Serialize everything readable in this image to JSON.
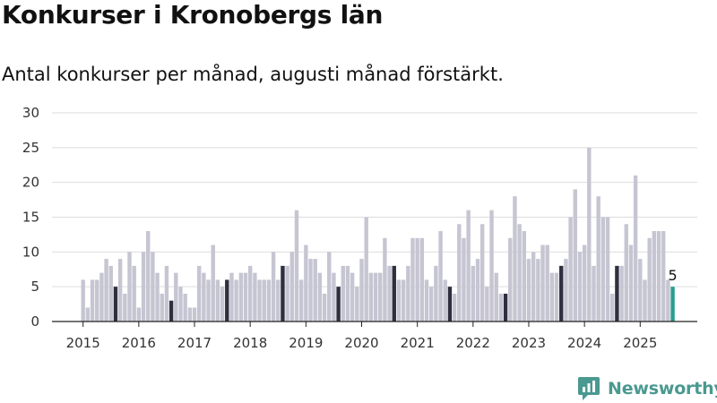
{
  "header": {
    "title": "Konkurser i Kronobergs län",
    "subtitle": "Antal konkurser per månad, augusti månad förstärkt."
  },
  "brand": {
    "name": "Newsworthy",
    "color": "#4a9990"
  },
  "colors": {
    "bar": "#c6c5d2",
    "august": "#2f2f3f",
    "latest": "#2a9d8f",
    "grid": "#dddddd",
    "axis": "#222222"
  },
  "chart_data": {
    "type": "bar",
    "start": "2015-01",
    "ylim": [
      0,
      30
    ],
    "yticks": [
      0,
      5,
      10,
      15,
      20,
      25,
      30
    ],
    "xticks": [
      "2015",
      "2016",
      "2017",
      "2018",
      "2019",
      "2020",
      "2021",
      "2022",
      "2023",
      "2024",
      "2025"
    ],
    "grid": true,
    "values": [
      6,
      2,
      6,
      6,
      7,
      9,
      8,
      5,
      9,
      4,
      10,
      8,
      2,
      10,
      13,
      10,
      7,
      4,
      8,
      3,
      7,
      5,
      4,
      2,
      2,
      8,
      7,
      6,
      11,
      6,
      5,
      6,
      7,
      6,
      7,
      7,
      8,
      7,
      6,
      6,
      6,
      10,
      6,
      8,
      8,
      10,
      16,
      6,
      11,
      9,
      9,
      7,
      4,
      10,
      7,
      5,
      8,
      8,
      7,
      5,
      9,
      15,
      7,
      7,
      7,
      12,
      8,
      8,
      6,
      6,
      8,
      12,
      12,
      12,
      6,
      5,
      8,
      13,
      6,
      5,
      4,
      14,
      12,
      16,
      8,
      9,
      14,
      5,
      16,
      7,
      4,
      4,
      12,
      18,
      14,
      13,
      9,
      10,
      9,
      11,
      11,
      7,
      7,
      8,
      9,
      15,
      19,
      10,
      11,
      25,
      8,
      18,
      15,
      15,
      4,
      8,
      8,
      14,
      11,
      21,
      9,
      6,
      12,
      13,
      13,
      13,
      6,
      5
    ],
    "highlight_month": "08",
    "latest_label": "5"
  }
}
